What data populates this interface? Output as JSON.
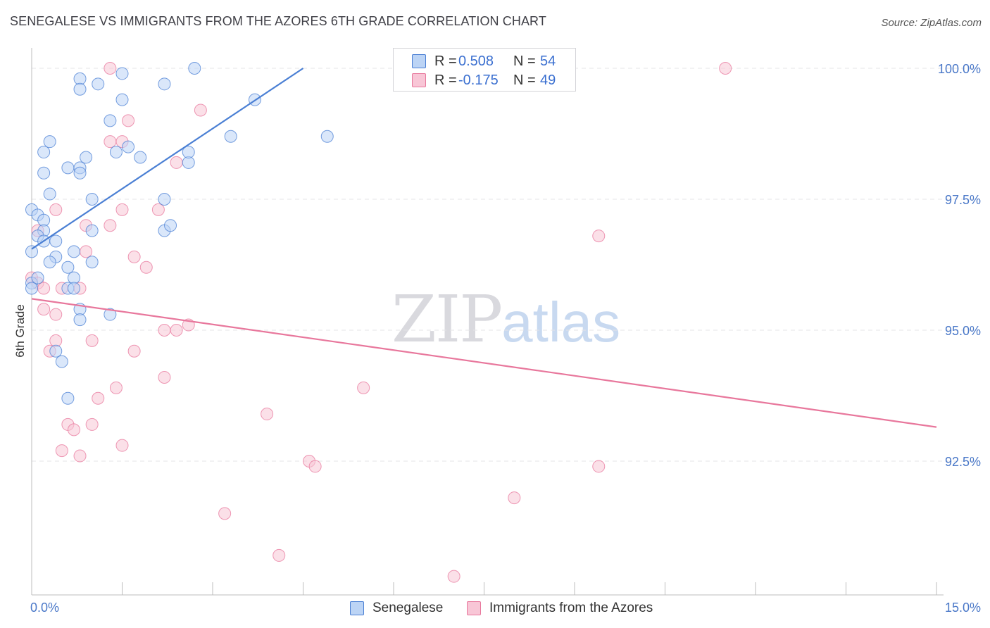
{
  "title": "SENEGALESE VS IMMIGRANTS FROM THE AZORES 6TH GRADE CORRELATION CHART",
  "source": "Source: ZipAtlas.com",
  "watermark": {
    "zip": "ZIP",
    "atlas": "atlas"
  },
  "legend": {
    "r_label": "R =",
    "n_label": "N =",
    "series1": {
      "r": "0.508",
      "n": "54"
    },
    "series2": {
      "r": "-0.175",
      "n": "49"
    }
  },
  "bottom_legend": {
    "series1": "Senegalese",
    "series2": "Immigrants from the Azores"
  },
  "chart_data": {
    "type": "scatter",
    "title": "SENEGALESE VS IMMIGRANTS FROM THE AZORES 6TH GRADE CORRELATION CHART",
    "xlabel": "",
    "ylabel": "6th Grade",
    "xlim": [
      0,
      15
    ],
    "ylim": [
      90.0,
      100.2
    ],
    "x_tick_labels": [
      "0.0%",
      "15.0%"
    ],
    "y_ticks": [
      100.0,
      97.5,
      95.0,
      92.5
    ],
    "y_tick_labels": [
      "100.0%",
      "97.5%",
      "95.0%",
      "92.5%"
    ],
    "colors": {
      "series1": "#4a7fd4",
      "series2": "#e8779c",
      "fill1": "#bcd4f5",
      "fill2": "#f8c6d6"
    },
    "series": [
      {
        "name": "Senegalese",
        "trend": {
          "x": [
            0.0,
            4.5
          ],
          "y": [
            96.55,
            100.0
          ]
        },
        "points": [
          [
            0.8,
            99.8
          ],
          [
            1.1,
            99.7
          ],
          [
            1.5,
            99.9
          ],
          [
            2.2,
            99.7
          ],
          [
            2.7,
            100.0
          ],
          [
            0.8,
            99.6
          ],
          [
            1.5,
            99.4
          ],
          [
            3.7,
            99.4
          ],
          [
            1.3,
            99.0
          ],
          [
            0.3,
            98.6
          ],
          [
            1.6,
            98.5
          ],
          [
            2.6,
            98.2
          ],
          [
            3.3,
            98.7
          ],
          [
            4.9,
            98.7
          ],
          [
            0.9,
            98.3
          ],
          [
            1.4,
            98.4
          ],
          [
            2.6,
            98.4
          ],
          [
            0.6,
            98.1
          ],
          [
            0.8,
            98.1
          ],
          [
            0.2,
            98.0
          ],
          [
            0.8,
            98.0
          ],
          [
            0.3,
            97.6
          ],
          [
            1.0,
            97.5
          ],
          [
            2.2,
            97.5
          ],
          [
            0.0,
            97.3
          ],
          [
            0.1,
            97.2
          ],
          [
            0.2,
            97.1
          ],
          [
            0.2,
            96.9
          ],
          [
            1.0,
            96.9
          ],
          [
            2.2,
            96.9
          ],
          [
            0.1,
            96.8
          ],
          [
            0.2,
            96.7
          ],
          [
            0.4,
            96.7
          ],
          [
            0.0,
            96.5
          ],
          [
            0.7,
            96.5
          ],
          [
            0.4,
            96.4
          ],
          [
            1.0,
            96.3
          ],
          [
            0.3,
            96.3
          ],
          [
            0.6,
            96.2
          ],
          [
            0.7,
            96.0
          ],
          [
            0.0,
            95.9
          ],
          [
            0.0,
            95.8
          ],
          [
            0.6,
            95.8
          ],
          [
            0.7,
            95.8
          ],
          [
            0.8,
            95.4
          ],
          [
            1.3,
            95.3
          ],
          [
            0.8,
            95.2
          ],
          [
            0.4,
            94.6
          ],
          [
            0.5,
            94.4
          ],
          [
            0.6,
            93.7
          ],
          [
            0.1,
            96.0
          ],
          [
            0.2,
            98.4
          ],
          [
            1.8,
            98.3
          ],
          [
            2.3,
            97.0
          ]
        ]
      },
      {
        "name": "Immigrants from the Azores",
        "trend": {
          "x": [
            0.0,
            15.0
          ],
          "y": [
            95.6,
            93.15
          ]
        },
        "points": [
          [
            1.3,
            100.0
          ],
          [
            11.5,
            100.0
          ],
          [
            2.8,
            99.2
          ],
          [
            1.6,
            99.0
          ],
          [
            1.3,
            98.6
          ],
          [
            1.5,
            98.6
          ],
          [
            2.4,
            98.2
          ],
          [
            0.4,
            97.3
          ],
          [
            1.5,
            97.3
          ],
          [
            2.1,
            97.3
          ],
          [
            0.9,
            97.0
          ],
          [
            1.3,
            97.0
          ],
          [
            9.4,
            96.8
          ],
          [
            0.1,
            96.9
          ],
          [
            0.9,
            96.5
          ],
          [
            1.7,
            96.4
          ],
          [
            1.9,
            96.2
          ],
          [
            0.0,
            96.0
          ],
          [
            0.1,
            95.9
          ],
          [
            0.2,
            95.8
          ],
          [
            0.5,
            95.8
          ],
          [
            0.8,
            95.8
          ],
          [
            0.2,
            95.4
          ],
          [
            0.4,
            95.3
          ],
          [
            2.2,
            95.0
          ],
          [
            2.4,
            95.0
          ],
          [
            2.6,
            95.1
          ],
          [
            1.0,
            94.8
          ],
          [
            0.4,
            94.8
          ],
          [
            0.3,
            94.6
          ],
          [
            1.7,
            94.6
          ],
          [
            2.2,
            94.1
          ],
          [
            1.4,
            93.9
          ],
          [
            1.1,
            93.7
          ],
          [
            5.5,
            93.9
          ],
          [
            3.9,
            93.4
          ],
          [
            0.6,
            93.2
          ],
          [
            0.7,
            93.1
          ],
          [
            1.0,
            93.2
          ],
          [
            0.5,
            92.7
          ],
          [
            1.5,
            92.8
          ],
          [
            0.8,
            92.6
          ],
          [
            4.6,
            92.5
          ],
          [
            4.7,
            92.4
          ],
          [
            9.4,
            92.4
          ],
          [
            8.0,
            91.8
          ],
          [
            3.2,
            91.5
          ],
          [
            4.1,
            90.7
          ],
          [
            7.0,
            90.3
          ]
        ]
      }
    ]
  }
}
